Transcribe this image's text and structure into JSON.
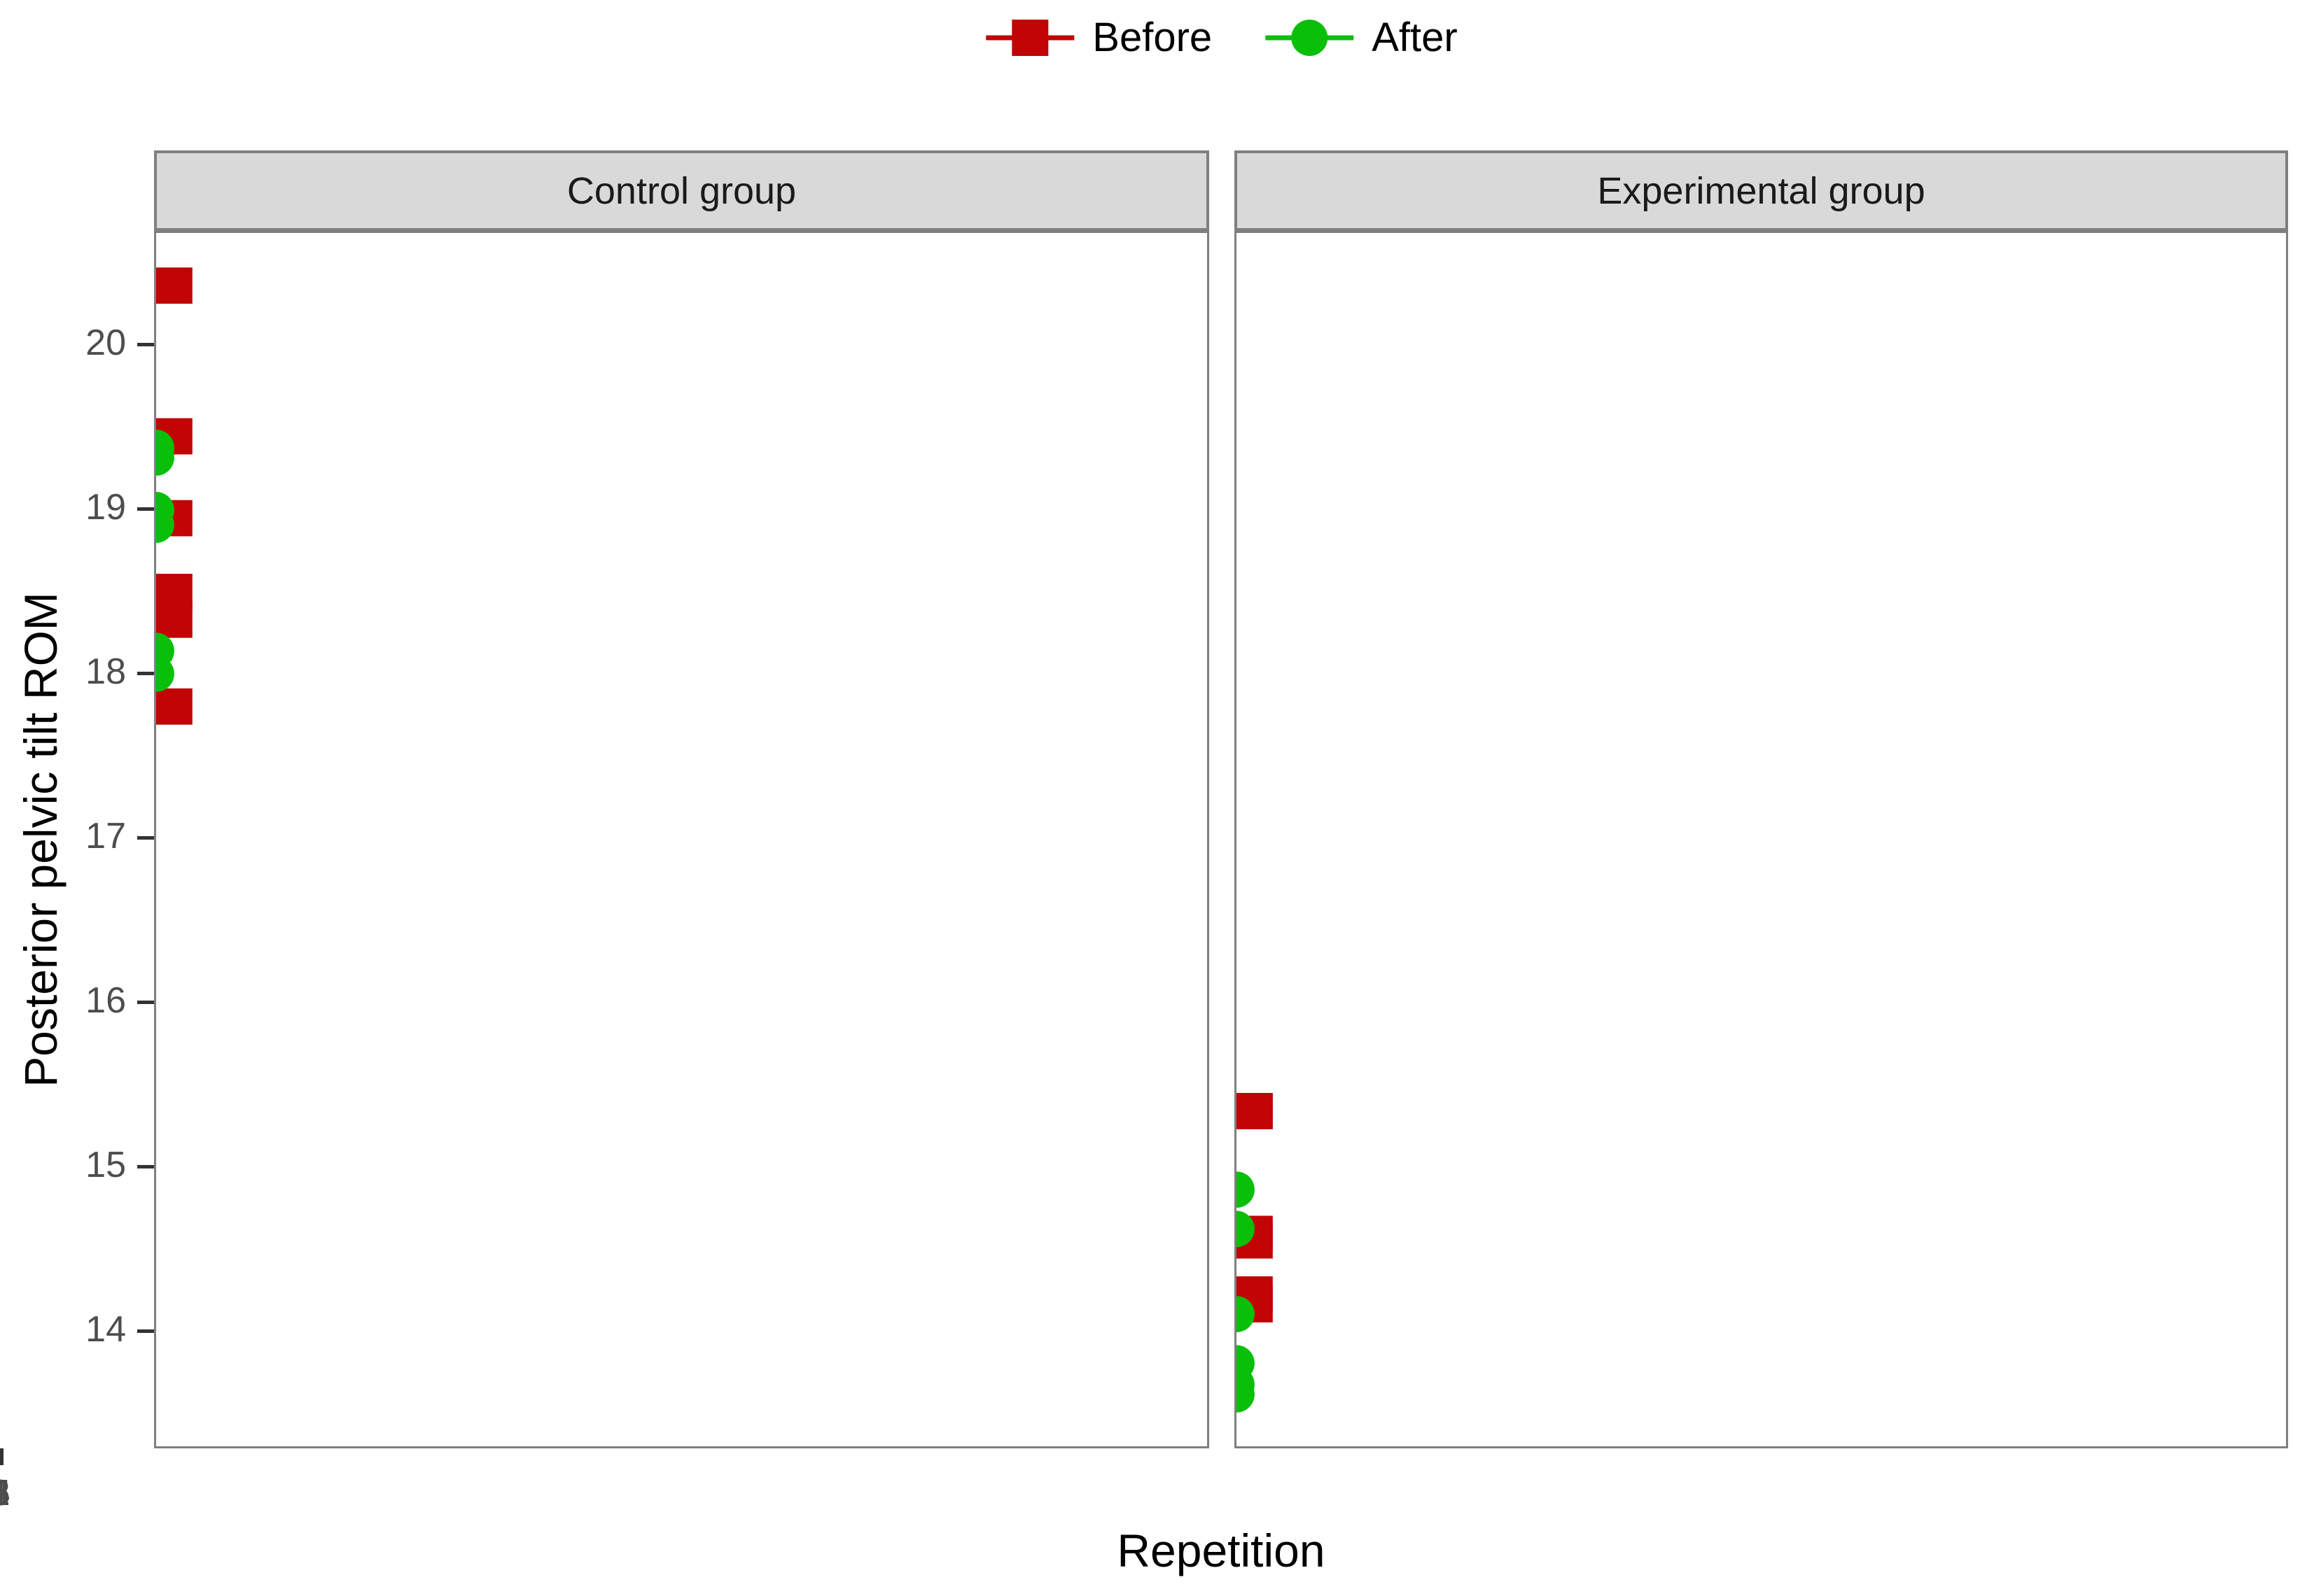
{
  "figure": {
    "background": "#FFFFFF",
    "strip_fill": "#D9D9D9",
    "strip_border": "#7F7F7F",
    "panel_border": "#7F7F7F",
    "tick_color": "#333333",
    "tick_text_color": "#4D4D4D"
  },
  "legend": {
    "position": "top-center"
  },
  "chart_data": {
    "type": "line",
    "title": "",
    "xlabel": "Repetition",
    "ylabel": "Posterior pelvic tilt ROM",
    "x": [
      1,
      2,
      3,
      4,
      5,
      6
    ],
    "yticks": [
      14,
      15,
      16,
      17,
      18,
      19,
      20
    ],
    "ylim": [
      13.3,
      20.7
    ],
    "grid": "off",
    "legend_position": "top",
    "facets": [
      {
        "label": "Control group",
        "series": [
          {
            "name": "Before",
            "color": "#C10505",
            "marker": "square",
            "linestyle": "solid",
            "values": [
              17.8,
              18.33,
              18.5,
              18.95,
              19.45,
              20.37
            ]
          },
          {
            "name": "After",
            "color": "#0ABF0A",
            "marker": "circle",
            "linestyle": "dashed",
            "values": [
              18.14,
              18.0,
              19.32,
              19.38,
              19.0,
              18.91
            ]
          }
        ]
      },
      {
        "label": "Experimental group",
        "series": [
          {
            "name": "Before",
            "color": "#C10505",
            "marker": "square",
            "linestyle": "solid",
            "values": [
              14.54,
              14.21,
              14.15,
              14.58,
              15.33,
              15.33
            ]
          },
          {
            "name": "After",
            "color": "#0ABF0A",
            "marker": "circle",
            "linestyle": "dashed",
            "values": [
              13.66,
              13.79,
              13.6,
              14.09,
              14.85,
              14.61
            ]
          }
        ]
      }
    ]
  }
}
